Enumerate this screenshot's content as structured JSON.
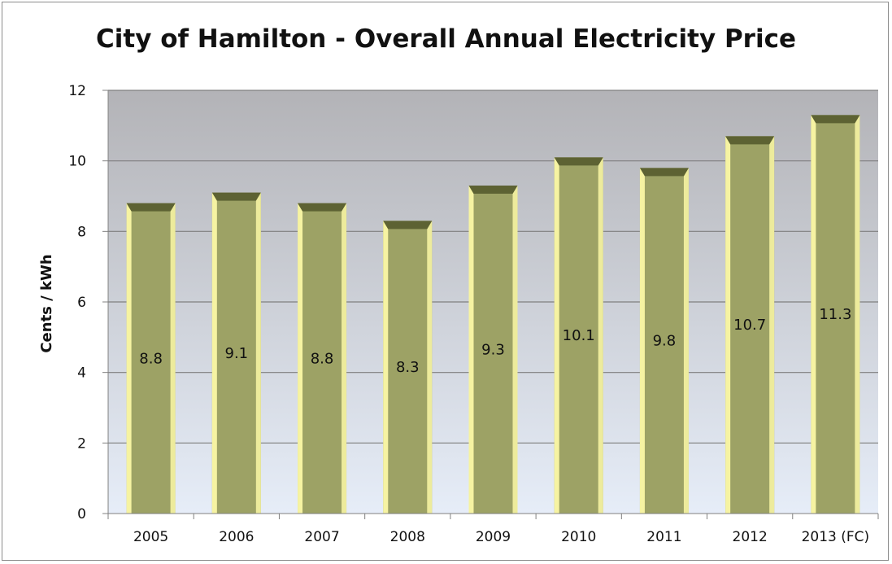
{
  "chart_data": {
    "type": "bar",
    "title": "City of Hamilton - Overall Annual Electricity Price",
    "xlabel": "",
    "ylabel": "Cents / kWh",
    "categories": [
      "2005",
      "2006",
      "2007",
      "2008",
      "2009",
      "2010",
      "2011",
      "2012",
      "2013 (FC)"
    ],
    "values": [
      8.8,
      9.1,
      8.8,
      8.3,
      9.3,
      10.1,
      9.8,
      10.7,
      11.3
    ],
    "data_labels": [
      "8.8",
      "9.1",
      "8.8",
      "8.3",
      "9.3",
      "10.1",
      "9.8",
      "10.7",
      "11.3"
    ],
    "ylim": [
      0,
      12
    ],
    "yticks": [
      "0",
      "2",
      "4",
      "6",
      "8",
      "10",
      "12"
    ],
    "grid": true,
    "legend": "none",
    "colors": {
      "bar_face": "#9da265",
      "bar_bevel_light": "#f6f3a2",
      "bar_bevel_dark": "#5d6233",
      "plot_bg_top": "#b3b3b7",
      "plot_bg_bottom": "#e6edf8",
      "gridline": "#7f7f7f",
      "axis": "#808080"
    }
  }
}
